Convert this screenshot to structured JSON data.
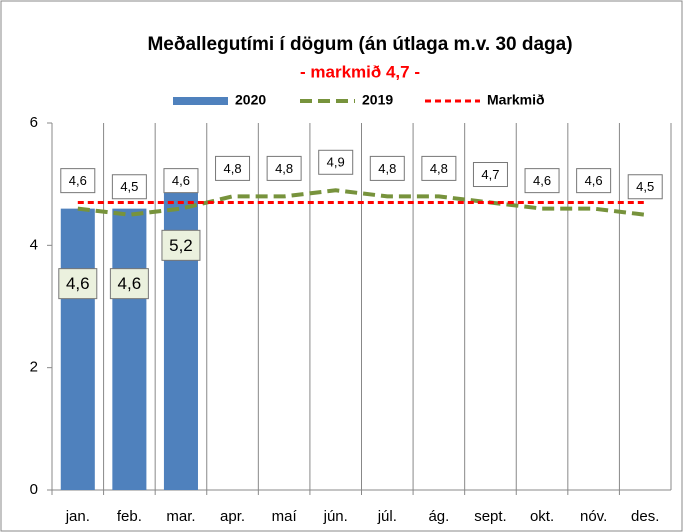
{
  "chart_data": {
    "type": "bar_line",
    "title": "Meðallegutími í dögum (án útlaga m.v. 30 daga)",
    "subtitle": "- markmið 4,7 -",
    "categories": [
      "jan.",
      "feb.",
      "mar.",
      "apr.",
      "maí",
      "jún.",
      "júl.",
      "ág.",
      "sept.",
      "okt.",
      "nóv.",
      "des."
    ],
    "series": [
      {
        "name": "2020",
        "type": "bar",
        "color": "#4f81bd",
        "values": [
          4.6,
          4.6,
          5.2,
          null,
          null,
          null,
          null,
          null,
          null,
          null,
          null,
          null
        ],
        "value_labels": [
          "4,6",
          "4,6",
          "5,2",
          null,
          null,
          null,
          null,
          null,
          null,
          null,
          null,
          null
        ]
      },
      {
        "name": "2019",
        "type": "line",
        "color": "#77933c",
        "values": [
          4.6,
          4.5,
          4.6,
          4.8,
          4.8,
          4.9,
          4.8,
          4.8,
          4.7,
          4.6,
          4.6,
          4.5
        ],
        "value_labels": [
          "4,6",
          "4,5",
          "4,6",
          "4,8",
          "4,8",
          "4,9",
          "4,8",
          "4,8",
          "4,7",
          "4,6",
          "4,6",
          "4,5"
        ]
      },
      {
        "name": "Markmið",
        "type": "line",
        "color": "#ff0000",
        "values": [
          4.7,
          4.7,
          4.7,
          4.7,
          4.7,
          4.7,
          4.7,
          4.7,
          4.7,
          4.7,
          4.7,
          4.7
        ]
      }
    ],
    "ylim": [
      0,
      6
    ],
    "yticks": [
      0,
      2,
      4,
      6
    ],
    "grid": "vertical",
    "legend": "top"
  }
}
